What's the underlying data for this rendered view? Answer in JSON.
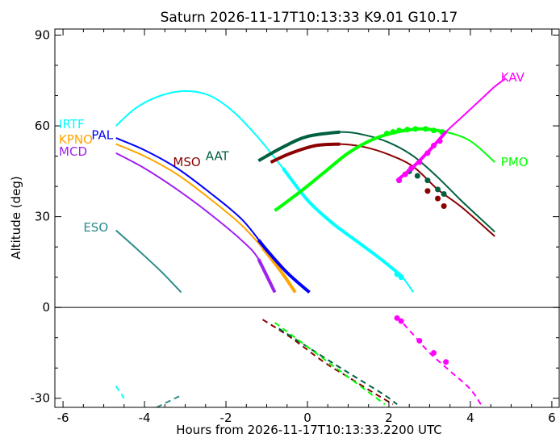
{
  "chart_data": {
    "type": "line",
    "title": "Saturn 2026-11-17T10:13:33  K9.01  G10.17",
    "xlabel": "Hours from 2026-11-17T10:13:33.2200 UTC",
    "ylabel": "Altitude (deg)",
    "xlim": [
      -6.2,
      6.2
    ],
    "ylim": [
      -33,
      92
    ],
    "x_ticks": [
      -6,
      -4,
      -2,
      0,
      2,
      4,
      6
    ],
    "y_ticks": [
      -30,
      0,
      30,
      60,
      90
    ],
    "grid": false,
    "series": [
      {
        "name": "IRTF",
        "color": "#00ffff",
        "label_at": [
          -6.1,
          60.5
        ],
        "solid": [
          [
            -4.7,
            60
          ],
          [
            -4.2,
            66
          ],
          [
            -3.6,
            70
          ],
          [
            -3.0,
            71.5
          ],
          [
            -2.4,
            70
          ],
          [
            -1.8,
            64.5
          ],
          [
            -1.2,
            56
          ],
          [
            -0.6,
            46
          ],
          [
            0.0,
            35.5
          ],
          [
            0.6,
            28
          ],
          [
            1.2,
            22
          ],
          [
            1.8,
            16
          ],
          [
            2.3,
            10.5
          ],
          [
            2.6,
            5
          ]
        ],
        "thick_range": [
          -0.6,
          2.3
        ],
        "dots": [
          [
            2.2,
            11
          ],
          [
            2.3,
            10
          ]
        ],
        "dashed": [
          [
            -4.7,
            -26
          ],
          [
            -4.5,
            -30
          ]
        ]
      },
      {
        "name": "KPNO",
        "color": "#ffa500",
        "label_at": [
          -6.1,
          55.5
        ],
        "solid": [
          [
            -4.7,
            54
          ],
          [
            -4.0,
            50
          ],
          [
            -3.2,
            44
          ],
          [
            -2.4,
            36
          ],
          [
            -1.6,
            27
          ],
          [
            -1.0,
            18
          ],
          [
            -0.6,
            11
          ],
          [
            -0.3,
            5
          ]
        ],
        "thick_range": [
          -1.1,
          -0.3
        ],
        "dots": [],
        "dashed": []
      },
      {
        "name": "MCD",
        "color": "#a020f0",
        "label_at": [
          -6.1,
          51.5
        ],
        "solid": [
          [
            -4.7,
            51
          ],
          [
            -4.0,
            46
          ],
          [
            -3.2,
            39
          ],
          [
            -2.4,
            31
          ],
          [
            -1.6,
            22
          ],
          [
            -1.2,
            16
          ],
          [
            -0.8,
            5
          ]
        ],
        "thick_range": [
          -1.2,
          -0.8
        ],
        "dots": [],
        "dashed": []
      },
      {
        "name": "PAL",
        "color": "#0000ff",
        "label_at": [
          -5.3,
          57
        ],
        "solid": [
          [
            -4.7,
            56
          ],
          [
            -4.0,
            52
          ],
          [
            -3.2,
            46
          ],
          [
            -2.4,
            38
          ],
          [
            -1.6,
            29
          ],
          [
            -1.0,
            19
          ],
          [
            -0.5,
            11.5
          ],
          [
            0.05,
            5
          ]
        ],
        "thick_range": [
          -1.2,
          0.05
        ],
        "dots": [],
        "dashed": []
      },
      {
        "name": "MSO",
        "color": "#8b0000",
        "label_at": [
          -3.3,
          48
        ],
        "solid": [
          [
            -0.9,
            48
          ],
          [
            -0.4,
            51
          ],
          [
            0.2,
            53.5
          ],
          [
            0.8,
            54
          ],
          [
            1.4,
            53
          ],
          [
            2.0,
            50.5
          ],
          [
            2.6,
            46.5
          ],
          [
            3.2,
            39
          ],
          [
            3.8,
            33
          ],
          [
            4.6,
            23.5
          ]
        ],
        "thick_range": [
          -0.9,
          0.8
        ],
        "dots": [
          [
            2.95,
            38.5
          ],
          [
            3.2,
            36
          ],
          [
            3.35,
            33.5
          ]
        ],
        "dashed": [
          [
            -1.1,
            -4
          ],
          [
            -0.4,
            -10
          ],
          [
            0.4,
            -18
          ],
          [
            1.0,
            -23
          ],
          [
            1.6,
            -28
          ],
          [
            2.1,
            -32
          ]
        ]
      },
      {
        "name": "AAT",
        "color": "#006040",
        "label_at": [
          -2.5,
          50
        ],
        "solid": [
          [
            -1.2,
            48.5
          ],
          [
            -0.6,
            53
          ],
          [
            0.0,
            56.5
          ],
          [
            0.8,
            58
          ],
          [
            1.4,
            57
          ],
          [
            2.0,
            54.5
          ],
          [
            2.6,
            50
          ],
          [
            3.2,
            43
          ],
          [
            3.8,
            35
          ],
          [
            4.6,
            25
          ]
        ],
        "thick_range": [
          -1.2,
          0.8
        ],
        "dots": [
          [
            2.5,
            45
          ],
          [
            2.7,
            43.5
          ],
          [
            2.95,
            42
          ],
          [
            3.2,
            39
          ],
          [
            3.35,
            37.5
          ]
        ],
        "dashed": [
          [
            -0.7,
            -7
          ],
          [
            0.0,
            -13
          ],
          [
            0.7,
            -19
          ],
          [
            1.3,
            -24
          ],
          [
            1.9,
            -29
          ],
          [
            2.2,
            -32
          ]
        ]
      },
      {
        "name": "PMO",
        "color": "#00ff00",
        "label_at": [
          4.75,
          48
        ],
        "solid": [
          [
            -0.8,
            32
          ],
          [
            -0.2,
            38
          ],
          [
            0.4,
            44.5
          ],
          [
            1.0,
            51
          ],
          [
            1.6,
            55.5
          ],
          [
            2.2,
            58
          ],
          [
            2.8,
            59
          ],
          [
            3.4,
            58
          ],
          [
            4.0,
            55
          ],
          [
            4.6,
            48
          ]
        ],
        "thick_range": [
          -0.8,
          3.4
        ],
        "dots": [
          [
            2.1,
            58
          ],
          [
            2.25,
            58.5
          ],
          [
            2.45,
            58.8
          ],
          [
            2.65,
            59
          ],
          [
            2.9,
            59
          ],
          [
            3.1,
            58.5
          ],
          [
            3.3,
            58
          ],
          [
            1.95,
            57.5
          ]
        ],
        "dashed": [
          [
            -0.8,
            -5
          ],
          [
            -0.3,
            -10
          ],
          [
            0.3,
            -16
          ],
          [
            0.9,
            -22
          ],
          [
            1.5,
            -28
          ],
          [
            1.9,
            -32
          ]
        ]
      },
      {
        "name": "KAV",
        "color": "#ff00ff",
        "label_at": [
          4.75,
          76
        ],
        "solid": [
          [
            2.2,
            42
          ],
          [
            2.6,
            46.5
          ],
          [
            3.0,
            52
          ],
          [
            3.4,
            58
          ],
          [
            3.8,
            63
          ],
          [
            4.2,
            68
          ],
          [
            4.6,
            73
          ],
          [
            4.85,
            75.5
          ]
        ],
        "thick_range": [
          2.2,
          3.4
        ],
        "dots": [
          [
            2.25,
            42
          ],
          [
            2.4,
            44
          ],
          [
            2.55,
            46
          ],
          [
            2.75,
            48
          ],
          [
            2.95,
            51
          ],
          [
            3.1,
            53.5
          ],
          [
            3.25,
            55
          ]
        ],
        "dashed": [
          [
            2.2,
            -3
          ],
          [
            2.6,
            -9
          ],
          [
            3.0,
            -15
          ],
          [
            3.5,
            -21
          ],
          [
            4.0,
            -27
          ],
          [
            4.3,
            -33
          ]
        ],
        "dashed_dots": [
          [
            2.2,
            -3.5
          ],
          [
            2.3,
            -4.5
          ],
          [
            2.75,
            -11
          ],
          [
            3.1,
            -15
          ],
          [
            3.4,
            -18
          ]
        ]
      },
      {
        "name": "ESO",
        "color": "#2e8b8b",
        "label_at": [
          -5.5,
          26.5
        ],
        "solid": [
          [
            -4.7,
            25.5
          ],
          [
            -4.2,
            19.5
          ],
          [
            -3.6,
            12
          ],
          [
            -3.1,
            5
          ]
        ],
        "thick_range": null,
        "dots": [],
        "dashed": [
          [
            -3.7,
            -33
          ],
          [
            -3.1,
            -29
          ]
        ]
      }
    ]
  }
}
